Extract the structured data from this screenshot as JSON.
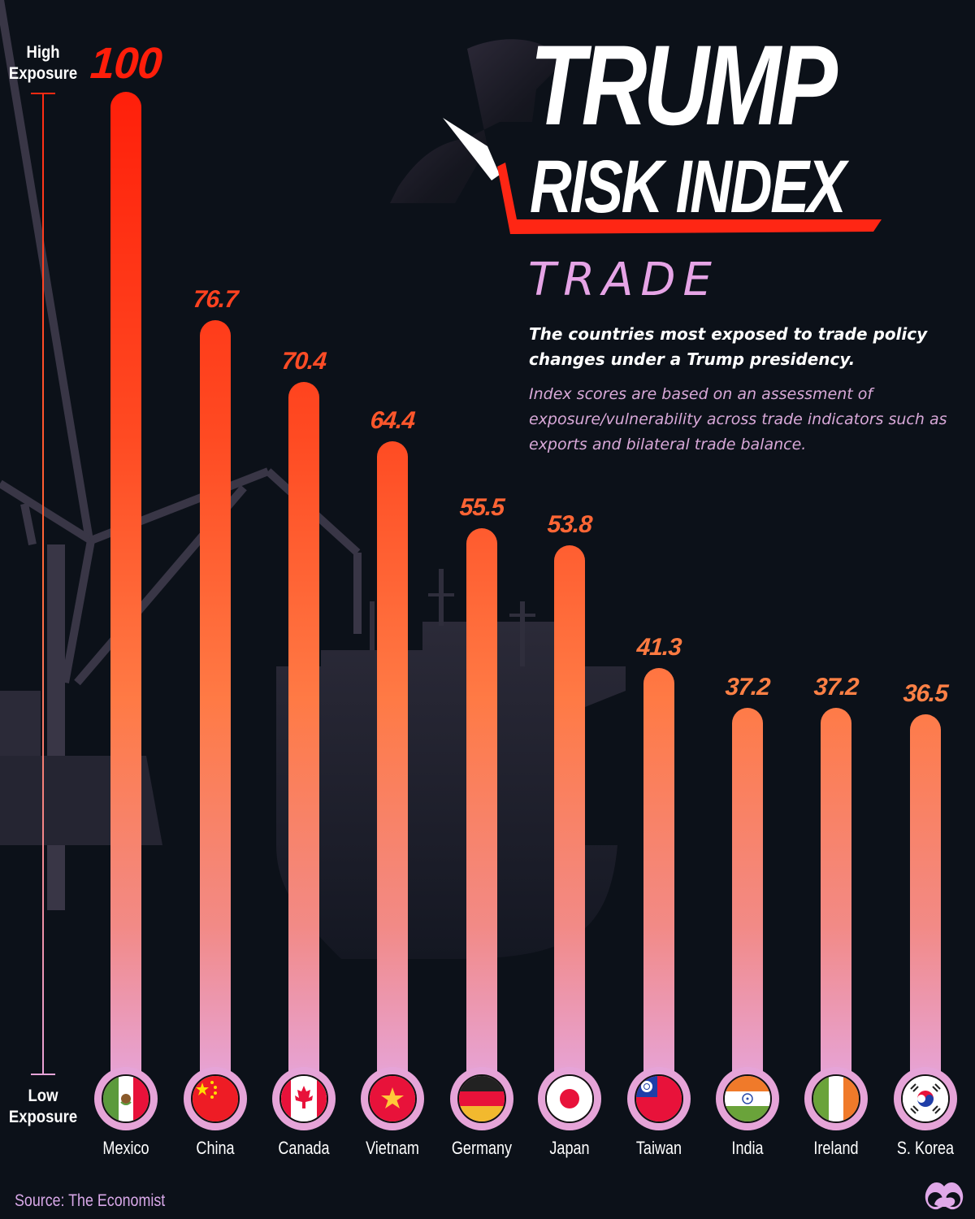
{
  "header": {
    "title_line1": "TRUMP",
    "title_line2": "RISK INDEX",
    "category": "TRADE",
    "subtitle": "The countries most exposed to trade policy changes under a Trump presidency.",
    "description": "Index scores are based on an assessment of exposure/vulnerability across trade indicators such as exports and bilateral trade balance."
  },
  "axis": {
    "high_label_1": "High",
    "high_label_2": "Exposure",
    "low_label_1": "Low",
    "low_label_2": "Exposure"
  },
  "footer": {
    "source": "Source: The Economist",
    "logo_icon": "binoculars-logo-icon"
  },
  "colors": {
    "background": "#0c1119",
    "bar_top_high": "#ff1f0a",
    "bar_mid": "#ff7a45",
    "bar_bottom": "#e6a4d8",
    "accent_pink": "#e6a4e6",
    "title_white": "#ffffff"
  },
  "chart_data": {
    "type": "bar",
    "title": "Trump Risk Index: Trade",
    "subtitle": "The countries most exposed to trade policy changes under a Trump presidency.",
    "xlabel": "",
    "ylabel": "Exposure (Low to High)",
    "ylim": [
      0,
      100
    ],
    "grid": false,
    "legend": "none",
    "categories": [
      "Mexico",
      "China",
      "Canada",
      "Vietnam",
      "Germany",
      "Japan",
      "Taiwan",
      "India",
      "Ireland",
      "S. Korea"
    ],
    "values": [
      100,
      76.7,
      70.4,
      64.4,
      55.5,
      53.8,
      41.3,
      37.2,
      37.2,
      36.5
    ],
    "value_labels": [
      "100",
      "76.7",
      "70.4",
      "64.4",
      "55.5",
      "53.8",
      "41.3",
      "37.2",
      "37.2",
      "36.5"
    ],
    "flag_icons": [
      "mexico-flag-icon",
      "china-flag-icon",
      "canada-flag-icon",
      "vietnam-flag-icon",
      "germany-flag-icon",
      "japan-flag-icon",
      "taiwan-flag-icon",
      "india-flag-icon",
      "ireland-flag-icon",
      "south-korea-flag-icon"
    ],
    "annotations": [
      "High Exposure",
      "Low Exposure"
    ],
    "source": "The Economist"
  }
}
